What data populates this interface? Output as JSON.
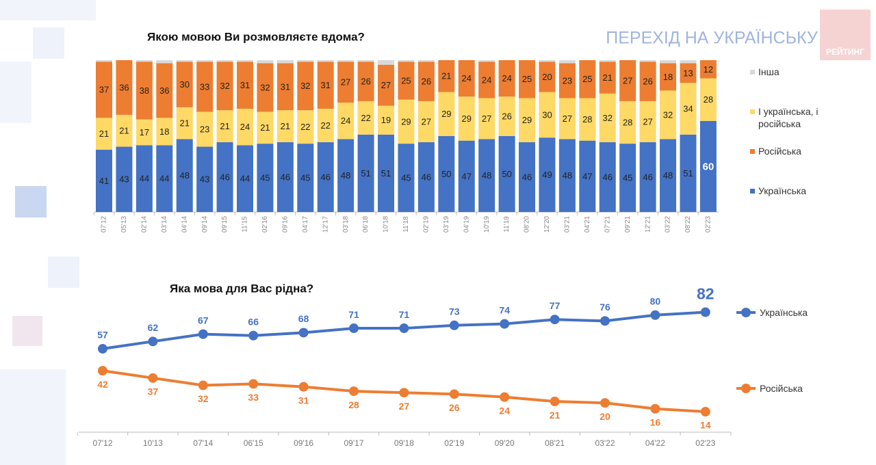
{
  "header": {
    "title": "ПЕРЕХІД НА УКРАЇНСЬКУ",
    "logo": "РЕЙТИНГ"
  },
  "chart_data": [
    {
      "type": "stacked_bar",
      "title": "Якою мовою Ви розмовляєте вдома?",
      "categories": [
        "07'12",
        "05'13",
        "02'14",
        "03'14",
        "04'14",
        "09'14",
        "09'15",
        "11'15",
        "02'16",
        "09'16",
        "04'17",
        "12'17",
        "03'18",
        "06'18",
        "10'18",
        "11'18",
        "02'19",
        "03'19",
        "04'19",
        "10'19",
        "11'19",
        "08'20",
        "12'20",
        "03'21",
        "04'21",
        "07'21",
        "09'21",
        "12'21",
        "03'22",
        "08'22",
        "02'23"
      ],
      "ylim": [
        0,
        100
      ],
      "series": [
        {
          "name": "Українська",
          "color": "#4472c4",
          "values": [
            41,
            43,
            44,
            44,
            48,
            43,
            46,
            44,
            45,
            46,
            45,
            46,
            48,
            51,
            51,
            45,
            46,
            50,
            47,
            48,
            50,
            46,
            49,
            48,
            47,
            46,
            45,
            46,
            48,
            51,
            60
          ]
        },
        {
          "name": "І українська, і російська",
          "color": "#ffd966",
          "values": [
            21,
            21,
            17,
            18,
            21,
            23,
            21,
            24,
            21,
            21,
            22,
            22,
            24,
            22,
            19,
            29,
            27,
            29,
            29,
            27,
            26,
            29,
            30,
            27,
            28,
            32,
            28,
            27,
            32,
            34,
            28
          ]
        },
        {
          "name": "Російська",
          "color": "#ed7d31",
          "values": [
            37,
            36,
            38,
            36,
            30,
            33,
            32,
            31,
            32,
            31,
            32,
            31,
            27,
            26,
            27,
            25,
            26,
            21,
            24,
            24,
            24,
            25,
            20,
            23,
            25,
            21,
            27,
            26,
            18,
            13,
            12
          ]
        },
        {
          "name": "Інша",
          "color": "#d9d9d9",
          "values": [
            1,
            0,
            1,
            2,
            1,
            1,
            1,
            1,
            2,
            2,
            1,
            1,
            1,
            1,
            3,
            1,
            1,
            0,
            0,
            1,
            0,
            0,
            1,
            2,
            0,
            1,
            0,
            1,
            2,
            2,
            0
          ]
        }
      ]
    },
    {
      "type": "line",
      "title": "Яка мова для Вас рідна?",
      "categories": [
        "07'12",
        "10'13",
        "07'14",
        "06'15",
        "09'16",
        "09'17",
        "09'18",
        "02'19",
        "09'20",
        "08'21",
        "03'22",
        "04'22",
        "02'23"
      ],
      "ylim": [
        0,
        100
      ],
      "series": [
        {
          "name": "Українська",
          "color": "#4472c4",
          "values": [
            57,
            62,
            67,
            66,
            68,
            71,
            71,
            73,
            74,
            77,
            76,
            80,
            82
          ]
        },
        {
          "name": "Російська",
          "color": "#ed7d31",
          "values": [
            42,
            37,
            32,
            33,
            31,
            28,
            27,
            26,
            24,
            21,
            20,
            16,
            14
          ]
        }
      ]
    }
  ]
}
